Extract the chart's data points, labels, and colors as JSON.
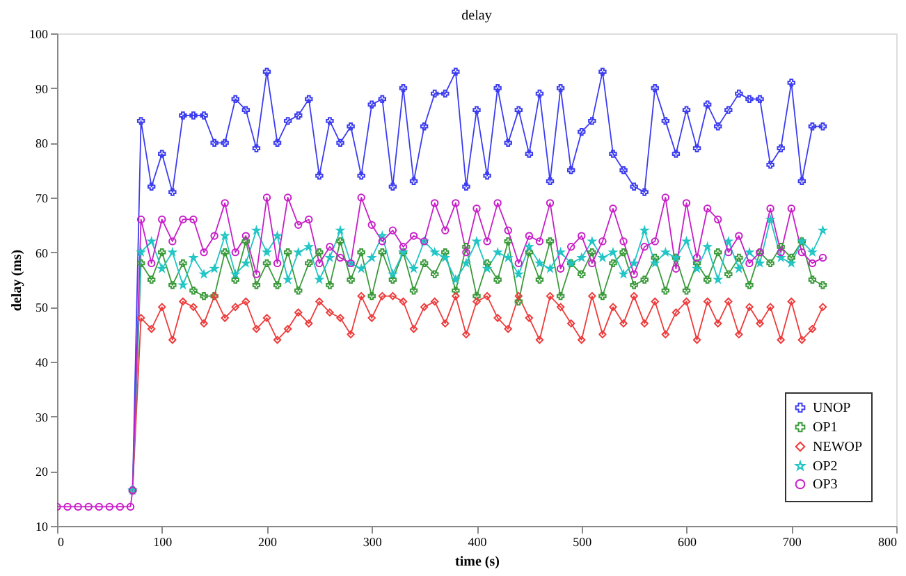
{
  "chart_data": {
    "type": "line",
    "title": "delay",
    "xlabel": "time (s)",
    "ylabel": "delay (ms)",
    "x": [
      0,
      10,
      20,
      30,
      40,
      50,
      60,
      70,
      72,
      80,
      90,
      100,
      110,
      120,
      130,
      140,
      150,
      160,
      170,
      180,
      190,
      200,
      210,
      220,
      230,
      240,
      250,
      260,
      270,
      280,
      290,
      300,
      310,
      320,
      330,
      340,
      350,
      360,
      370,
      380,
      390,
      400,
      410,
      420,
      430,
      440,
      450,
      460,
      470,
      480,
      490,
      500,
      510,
      520,
      530,
      540,
      550,
      560,
      570,
      580,
      590,
      600,
      610,
      620,
      630,
      640,
      650,
      660,
      670,
      680,
      690,
      700,
      710,
      720,
      730
    ],
    "series": [
      {
        "name": "UNOP",
        "color": "#3c3cf0",
        "marker": "cross",
        "values": [
          null,
          null,
          null,
          null,
          null,
          null,
          null,
          null,
          16.5,
          84,
          72,
          78,
          71,
          85,
          85,
          85,
          80,
          80,
          88,
          86,
          79,
          93,
          80,
          84,
          85,
          88,
          74,
          84,
          80,
          83,
          74,
          87,
          88,
          72,
          90,
          73,
          83,
          89,
          89,
          93,
          72,
          86,
          74,
          90,
          80,
          86,
          78,
          89,
          73,
          90,
          75,
          82,
          84,
          93,
          78,
          75,
          72,
          71,
          90,
          84,
          78,
          86,
          79,
          87,
          83,
          86,
          89,
          88,
          88,
          76,
          79,
          91,
          73,
          83,
          83
        ]
      },
      {
        "name": "OP1",
        "color": "#3a9a3a",
        "marker": "cross",
        "values": [
          null,
          null,
          null,
          null,
          null,
          null,
          null,
          null,
          16.5,
          58,
          55,
          60,
          54,
          58,
          53,
          52,
          52,
          60,
          55,
          62,
          54,
          58,
          54,
          60,
          53,
          58,
          60,
          54,
          62,
          55,
          60,
          52,
          60,
          55,
          60,
          53,
          58,
          56,
          60,
          53,
          61,
          52,
          58,
          55,
          62,
          51,
          60,
          55,
          62,
          52,
          58,
          56,
          60,
          52,
          58,
          60,
          54,
          55,
          59,
          53,
          59,
          53,
          58,
          55,
          60,
          56,
          59,
          54,
          60,
          58,
          61,
          59,
          62,
          55,
          54
        ]
      },
      {
        "name": "NEWOP",
        "color": "#ee3b3b",
        "marker": "diamond",
        "values": [
          null,
          null,
          null,
          null,
          null,
          null,
          null,
          null,
          16.5,
          48,
          46,
          50,
          44,
          51,
          50,
          47,
          52,
          48,
          50,
          51,
          46,
          48,
          44,
          46,
          49,
          47,
          51,
          49,
          48,
          45,
          52,
          48,
          52,
          52,
          51,
          46,
          50,
          51,
          47,
          52,
          45,
          51,
          52,
          48,
          46,
          52,
          48,
          44,
          52,
          50,
          47,
          44,
          52,
          45,
          50,
          47,
          52,
          47,
          51,
          45,
          49,
          51,
          44,
          51,
          47,
          51,
          45,
          50,
          47,
          50,
          44,
          51,
          44,
          46,
          50
        ]
      },
      {
        "name": "OP2",
        "color": "#1fc4c4",
        "marker": "star",
        "values": [
          null,
          null,
          null,
          null,
          null,
          null,
          null,
          null,
          16.5,
          60,
          62,
          57,
          60,
          54,
          59,
          56,
          57,
          63,
          56,
          58,
          64,
          60,
          63,
          55,
          60,
          61,
          55,
          59,
          64,
          58,
          57,
          59,
          63,
          56,
          60,
          57,
          62,
          60,
          59,
          55,
          58,
          62,
          57,
          60,
          59,
          56,
          61,
          58,
          57,
          60,
          58,
          59,
          62,
          59,
          60,
          56,
          58,
          64,
          58,
          60,
          59,
          62,
          57,
          61,
          55,
          62,
          57,
          60,
          58,
          66,
          59,
          58,
          62,
          60,
          64
        ]
      },
      {
        "name": "OP3",
        "color": "#c81ec8",
        "marker": "circle",
        "values": [
          13.5,
          13.5,
          13.5,
          13.5,
          13.5,
          13.5,
          13.5,
          13.5,
          16.5,
          66,
          58,
          66,
          62,
          66,
          66,
          60,
          63,
          69,
          60,
          63,
          56,
          70,
          58,
          70,
          65,
          66,
          58,
          61,
          59,
          58,
          70,
          65,
          62,
          64,
          61,
          63,
          62,
          69,
          64,
          69,
          60,
          68,
          62,
          69,
          64,
          58,
          63,
          62,
          69,
          57,
          61,
          63,
          58,
          62,
          68,
          62,
          56,
          61,
          62,
          70,
          57,
          69,
          59,
          68,
          66,
          60,
          63,
          58,
          60,
          68,
          60,
          68,
          60,
          58,
          59
        ]
      }
    ],
    "xlim": [
      0,
      800
    ],
    "xticks": [
      0,
      100,
      200,
      300,
      400,
      500,
      600,
      700,
      800
    ],
    "ylim": [
      10,
      100
    ],
    "yticks": [
      10,
      20,
      30,
      40,
      50,
      60,
      70,
      80,
      90,
      100
    ],
    "grid": false,
    "legend": "bottom right",
    "line_style": "solid"
  }
}
